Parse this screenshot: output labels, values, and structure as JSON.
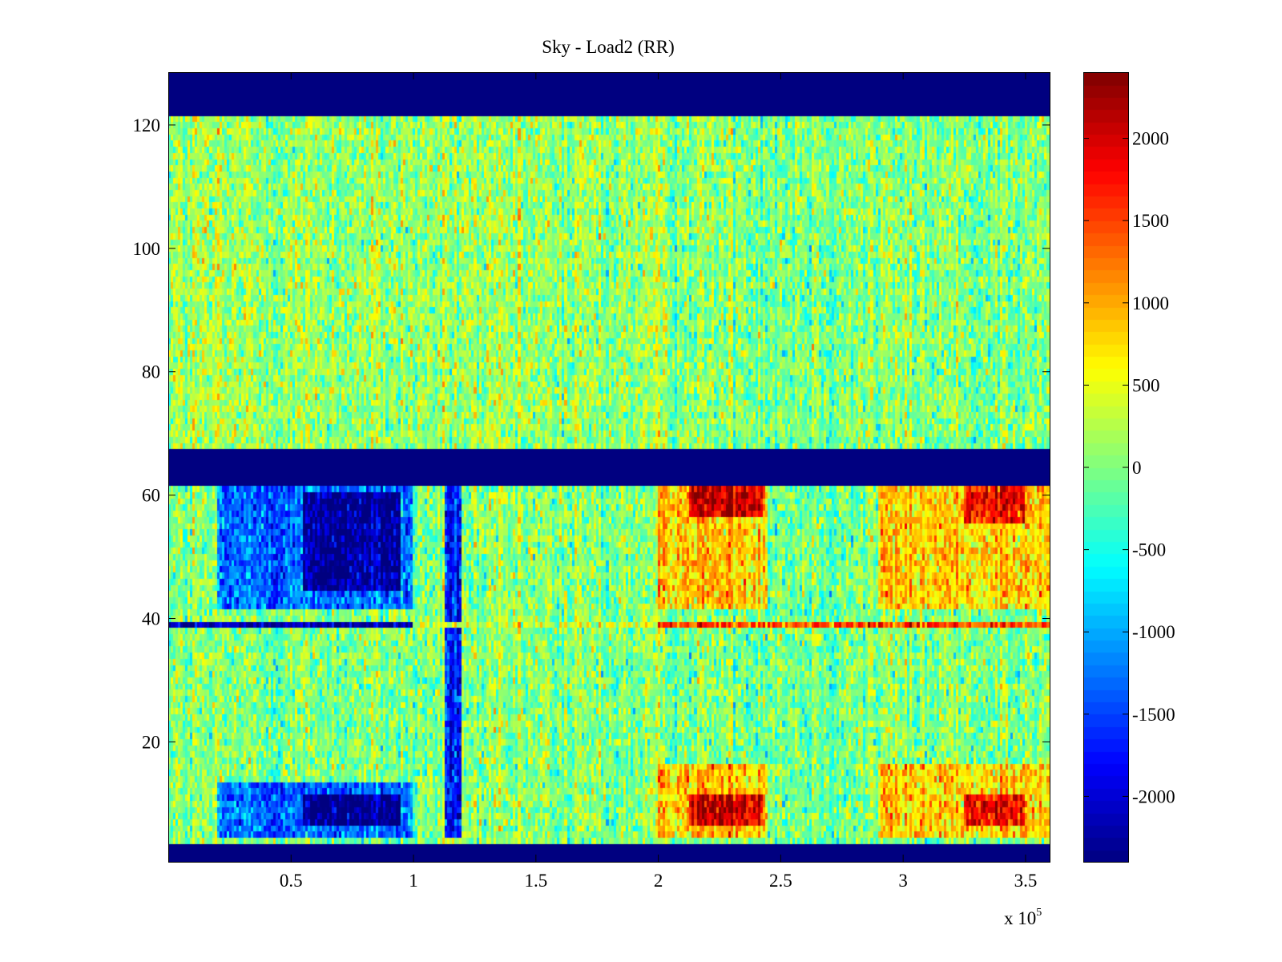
{
  "chart_data": {
    "type": "heatmap",
    "title": "Sky - Load2 (RR)",
    "xlabel": "",
    "ylabel": "",
    "x_multiplier_label": "x 10",
    "x_multiplier_exponent": "5",
    "xlim": [
      0,
      360000
    ],
    "ylim": [
      0.5,
      128.5
    ],
    "xticks": [
      50000,
      100000,
      150000,
      200000,
      250000,
      300000,
      350000
    ],
    "xtick_labels": [
      "0.5",
      "1",
      "1.5",
      "2",
      "2.5",
      "3",
      "3.5"
    ],
    "yticks": [
      20,
      40,
      60,
      80,
      100,
      120
    ],
    "ytick_labels": [
      "20",
      "40",
      "60",
      "80",
      "100",
      "120"
    ],
    "colormap": "jet",
    "clim": [
      -2400,
      2400
    ],
    "colorbar_ticks": [
      2000,
      1500,
      1000,
      500,
      0,
      -500,
      -1000,
      -1500,
      -2000
    ],
    "colorbar_tick_labels": [
      "2000",
      "1500",
      "1000",
      "500",
      "0",
      "-500",
      "-1000",
      "-1500",
      "-2000"
    ],
    "masked_channel_ranges": [
      [
        1,
        3
      ],
      [
        62,
        67
      ],
      [
        122,
        128
      ]
    ],
    "mask_value": -2400,
    "noise_std": 320,
    "row_features": [
      {
        "channels": [
          68,
          121
        ],
        "base": 150,
        "x_gradient_end": 0
      },
      {
        "channels": [
          4,
          61
        ],
        "base": 0
      }
    ],
    "regions": [
      {
        "x_range": [
          20000,
          100000
        ],
        "channels": [
          5,
          13
        ],
        "value": -1300
      },
      {
        "x_range": [
          20000,
          100000
        ],
        "channels": [
          42,
          61
        ],
        "value": -1300
      },
      {
        "x_range": [
          55000,
          95000
        ],
        "channels": [
          7,
          11
        ],
        "value": -2000
      },
      {
        "x_range": [
          55000,
          95000
        ],
        "channels": [
          45,
          60
        ],
        "value": -1900
      },
      {
        "x_range": [
          113000,
          120000
        ],
        "channels": [
          5,
          61
        ],
        "value": -1700
      },
      {
        "x_range": [
          200000,
          245000
        ],
        "channels": [
          5,
          16
        ],
        "value": 900
      },
      {
        "x_range": [
          200000,
          245000
        ],
        "channels": [
          42,
          61
        ],
        "value": 900
      },
      {
        "x_range": [
          213000,
          243000
        ],
        "channels": [
          7,
          11
        ],
        "value": 1800
      },
      {
        "x_range": [
          213000,
          243000
        ],
        "channels": [
          57,
          61
        ],
        "value": 1800
      },
      {
        "x_range": [
          290000,
          360000
        ],
        "channels": [
          5,
          16
        ],
        "value": 800
      },
      {
        "x_range": [
          290000,
          360000
        ],
        "channels": [
          42,
          61
        ],
        "value": 800
      },
      {
        "x_range": [
          325000,
          350000
        ],
        "channels": [
          7,
          11
        ],
        "value": 1700
      },
      {
        "x_range": [
          325000,
          350000
        ],
        "channels": [
          56,
          61
        ],
        "value": 1600
      }
    ],
    "line_features": [
      {
        "channel": 39,
        "x_range": [
          0,
          100000
        ],
        "value": -2200
      },
      {
        "channel": 39,
        "x_range": [
          100000,
          200000
        ],
        "value": 300
      },
      {
        "channel": 39,
        "x_range": [
          200000,
          360000
        ],
        "value": 1500
      }
    ]
  }
}
